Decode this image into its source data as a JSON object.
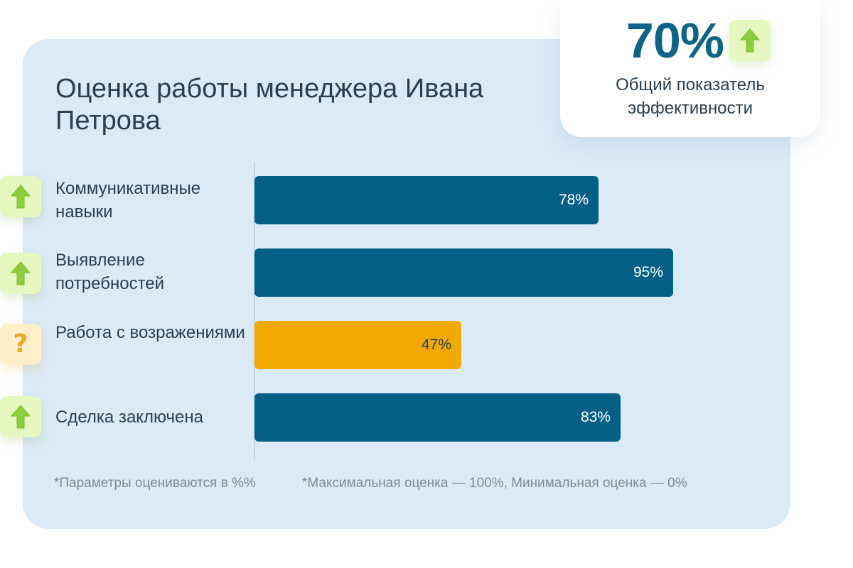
{
  "title": "Оценка работы менеджера Ивана Петрова",
  "kpi": {
    "value": "70%",
    "label": "Общий показатель эффективности",
    "icon": "arrow-up-icon"
  },
  "colors": {
    "primary": "#056088",
    "warning": "#f2aa02",
    "card_background": "#dbeaf7",
    "up_badge": "#e6f7bf",
    "question_badge": "#fff0c9"
  },
  "rows": [
    {
      "label": "Коммуникативные навыки",
      "value_label": "78%",
      "status": "up",
      "icon": "arrow-up-icon"
    },
    {
      "label": "Выявление потребностей",
      "value_label": "95%",
      "status": "up",
      "icon": "arrow-up-icon"
    },
    {
      "label": "Работа с возражениями",
      "value_label": "47%",
      "status": "warning",
      "icon": "question-mark-icon"
    },
    {
      "label": "Сделка заключена",
      "value_label": "83%",
      "status": "up",
      "icon": "arrow-up-icon"
    }
  ],
  "footnotes": {
    "units": "*Параметры оцениваются в %%",
    "range": "*Максимальная оценка — 100%, Минимальная оценка — 0%"
  },
  "chart_data": {
    "type": "bar",
    "orientation": "horizontal",
    "title": "Оценка работы менеджера Ивана Петрова",
    "categories": [
      "Коммуникативные навыки",
      "Выявление потребностей",
      "Работа с возражениями",
      "Сделка заключена"
    ],
    "values": [
      78,
      95,
      47,
      83
    ],
    "unit": "%",
    "xlim": [
      0,
      100
    ],
    "grid": false,
    "bar_colors": [
      "#056088",
      "#056088",
      "#f2aa02",
      "#056088"
    ]
  }
}
